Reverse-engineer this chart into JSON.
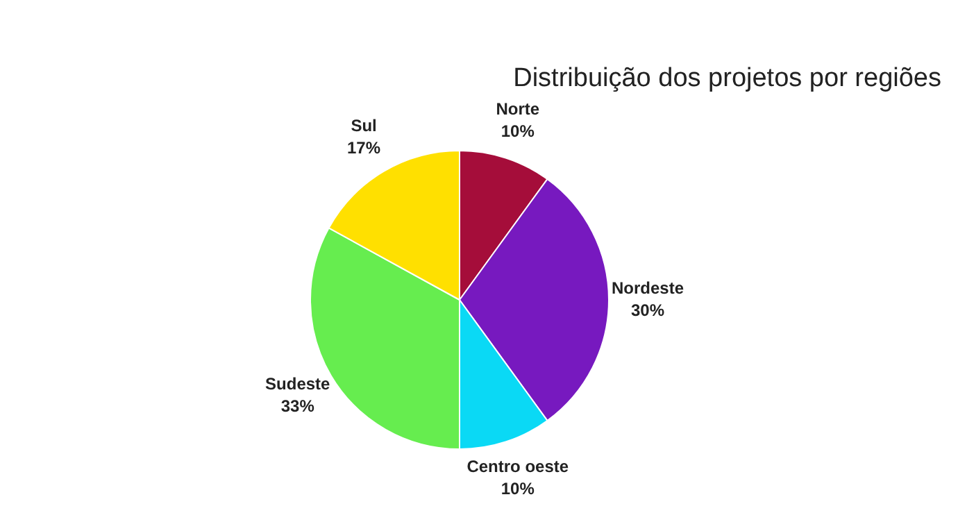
{
  "chart_data": {
    "type": "pie",
    "title": "Distribuição dos projetos por regiões",
    "categories": [
      "Norte",
      "Nordeste",
      "Centro oeste",
      "Sudeste",
      "Sul"
    ],
    "values": [
      10,
      30,
      10,
      33,
      17
    ],
    "colors": [
      "#a50d3a",
      "#7719bf",
      "#0ad9f5",
      "#66ed4f",
      "#ffe000"
    ],
    "value_labels": [
      "10%",
      "30%",
      "10%",
      "33%",
      "17%"
    ],
    "legend": false
  }
}
